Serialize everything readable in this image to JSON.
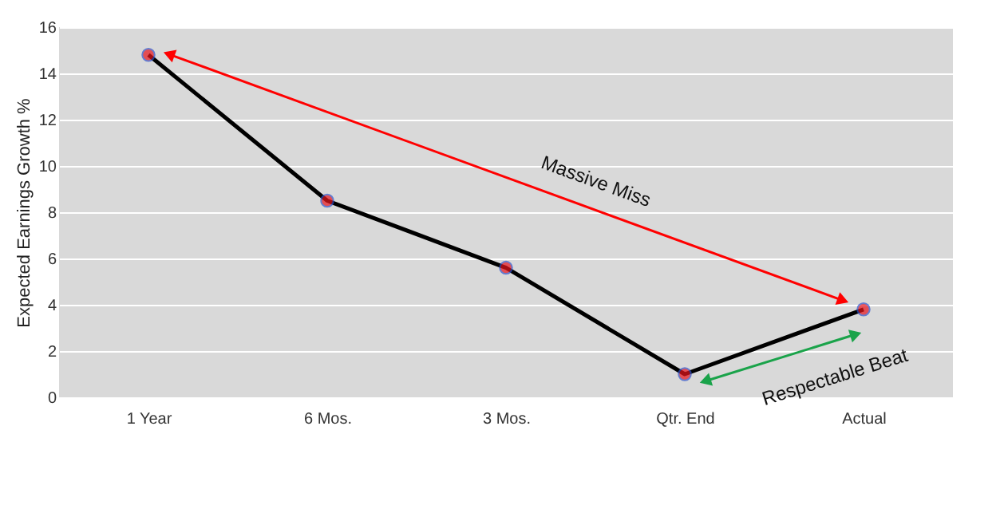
{
  "chart_data": {
    "type": "line",
    "ylabel": "Expected Earnings Growth %",
    "categories": [
      "1 Year",
      "6 Mos.",
      "3 Mos.",
      "Qtr. End",
      "Actual"
    ],
    "series": [
      {
        "color": "#000000",
        "values": [
          14.8,
          8.5,
          5.6,
          1.0,
          3.8
        ]
      }
    ],
    "ylim": [
      0,
      16
    ],
    "yticks": [
      0,
      2,
      4,
      6,
      8,
      10,
      12,
      14,
      16
    ],
    "grid": "y",
    "marker": "circle",
    "legend": false,
    "annotations": [
      "Massive Miss",
      "Respectable Beat"
    ]
  }
}
